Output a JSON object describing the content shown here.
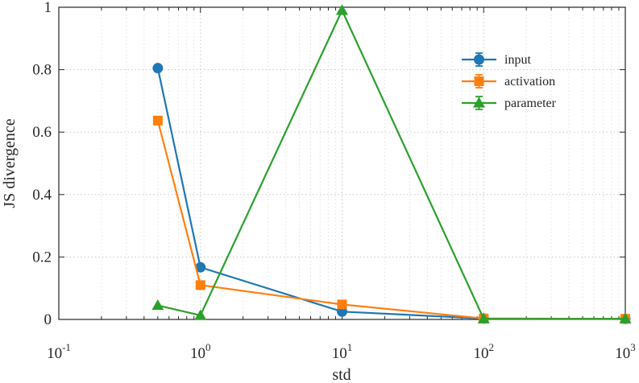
{
  "chart_data": {
    "type": "line",
    "xscale": "log",
    "xlim": [
      0.1,
      1000
    ],
    "ylim": [
      0,
      1
    ],
    "xlabel": "std",
    "ylabel": "JS divergence",
    "grid": true,
    "legend_position": "top-right",
    "x_ticks": [
      {
        "base": "10",
        "exp": "-1",
        "value": 0.1
      },
      {
        "base": "10",
        "exp": "0",
        "value": 1
      },
      {
        "base": "10",
        "exp": "1",
        "value": 10
      },
      {
        "base": "10",
        "exp": "2",
        "value": 100
      },
      {
        "base": "10",
        "exp": "3",
        "value": 1000
      }
    ],
    "y_ticks": [
      {
        "label": "0",
        "value": 0
      },
      {
        "label": "0.2",
        "value": 0.2
      },
      {
        "label": "0.4",
        "value": 0.4
      },
      {
        "label": "0.6",
        "value": 0.6
      },
      {
        "label": "0.8",
        "value": 0.8
      },
      {
        "label": "1",
        "value": 1
      }
    ],
    "x": [
      0.5,
      1,
      10,
      100,
      1000
    ],
    "series": [
      {
        "name": "input",
        "color": "#1f77b4",
        "marker": "circle",
        "values": [
          0.805,
          0.167,
          0.025,
          0.003,
          0.002
        ]
      },
      {
        "name": "activation",
        "color": "#ff7f0e",
        "marker": "square",
        "values": [
          0.637,
          0.11,
          0.048,
          0.003,
          0.002
        ]
      },
      {
        "name": "parameter",
        "color": "#2ca02c",
        "marker": "triangle",
        "values": [
          0.045,
          0.013,
          0.99,
          0.002,
          0.002
        ]
      }
    ]
  }
}
